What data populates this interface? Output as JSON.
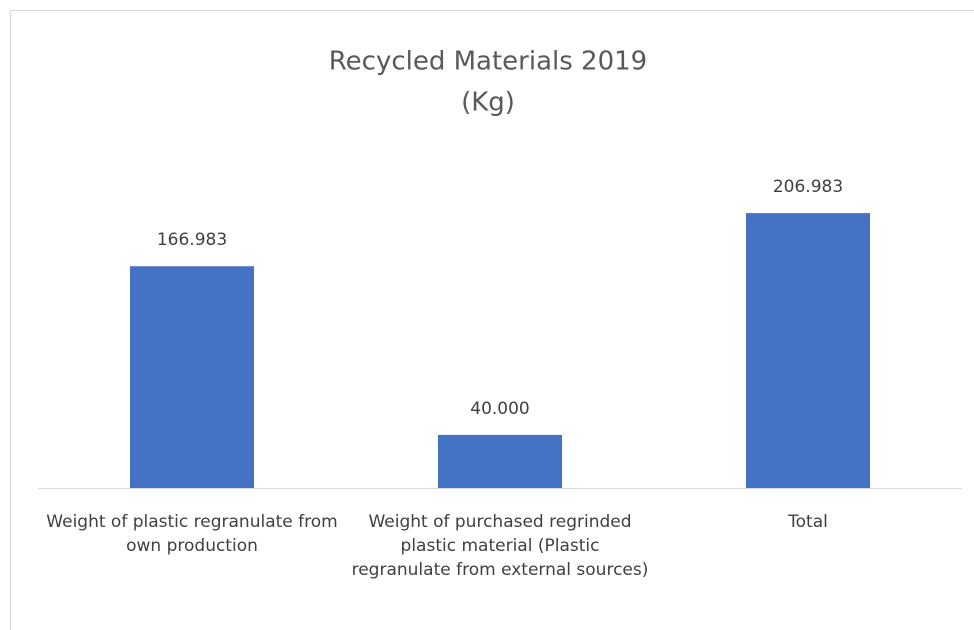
{
  "chart_data": {
    "type": "bar",
    "title": [
      "Recycled Materials 2019",
      "(Kg)"
    ],
    "categories": [
      "Weight of plastic regranulate from own production",
      "Weight of purchased regrinded plastic material (Plastic regranulate from external sources)",
      "Total"
    ],
    "values": [
      166.983,
      40,
      206.983
    ],
    "value_labels": [
      "166.983",
      "40.000",
      "206.983"
    ],
    "color": "#4472c4",
    "ylim": [
      0,
      250
    ]
  }
}
